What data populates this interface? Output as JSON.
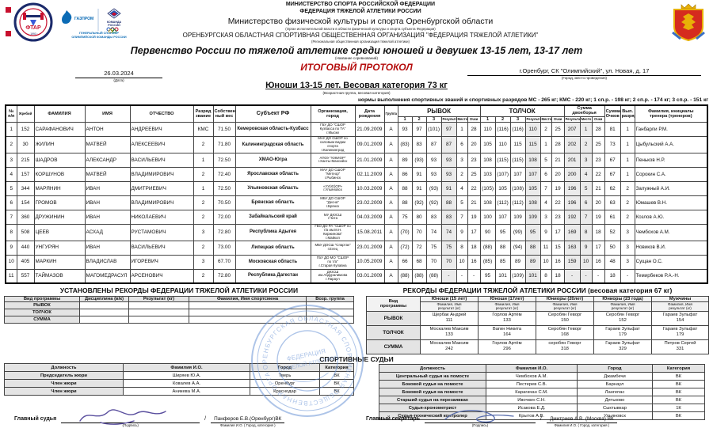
{
  "header": {
    "line1": "МИНИСТЕРСТВО СПОРТА  РОССИЙСКОЙ ФЕДЕРАЦИИ",
    "line2": "ФЕДЕРАЦИЯ ТЯЖЕЛОЙ АТЛЕТИКИ РОССИИ",
    "line3": "Министерство физической культуры и спорта Оренбургской области",
    "line4": "(Орган исполнительной власти в области физической культуры и спорта субъекта Федерации)",
    "line5": "ОРЕНБУРГСКАЯ ОБЛАСТНАЯ СПОРТИВНАЯ ОБЩЕСТВЕННАЯ ОРГАНИЗАЦИЯ \"ФЕДЕРАЦИЯ ТЯЖЕЛОЙ АТЛЕТИКИ\"",
    "line6": "(Региональная общественная организация тяжелой атлетики)",
    "sponsor1": "ГЕНЕРАЛЬНЫЙ СПОНСОР",
    "sponsor2": "ОЛИМПИЙСКОЙ КОМАНДЫ РОССИИ"
  },
  "title": {
    "competition": "Первенство России по тяжелой атлетике среди юношей и девушек 13-15 лет, 13-17 лет",
    "competition_label": "(Название соревнований)",
    "protocol": "ИТОГОВЫЙ ПРОТОКОЛ"
  },
  "meta": {
    "date": "26.03.2024",
    "date_label": "(Дата)",
    "place": "г.Оренбург, СК \"Олимпийский\", ул. Новая, д. 17",
    "place_label": "(Город, место проведения)"
  },
  "category": {
    "heading": "Юноши 13-15 лет. Весовая категория 73 кг",
    "label": "(Возрастная группа, весовая категория)",
    "norms": "нормы выполнения спортивных званий и спортивных разрядов  МС - 265 кг; КМС - 220 кг; 1 сп.р. - 198 кг; 2 сп.р. - 174 кг; 3 сп.р. - 151 кг"
  },
  "main_table": {
    "h": {
      "num": "№\nп/п",
      "lot": "Жребий",
      "surname": "ФАМИЛИЯ",
      "name": "ИМЯ",
      "patronymic": "ОТЧЕСТВО",
      "rank": "Разряд\nзвание",
      "weight": "Собствен\nный вес",
      "region": "Субъект РФ",
      "org": "Организация,\nгород",
      "born": "Дата\nрождения",
      "group": "Группа",
      "snatch": "РЫВОК",
      "jerk": "ТОЛЧОК",
      "total": "Сумма двоеборья",
      "sum": "Сумма\nОчков",
      "newrank": "Вып.\nразряд",
      "coach": "Фамилия, инициалы\nтренера (тренеров)",
      "a1": "1",
      "a2": "2",
      "a3": "3",
      "res": "Результат",
      "place": "Место",
      "pts": "Очки"
    },
    "rows": [
      {
        "n": "1",
        "lot": "152",
        "surname": "САРАФАНОВИЧ",
        "name": "АНТОН",
        "patronymic": "АНДРЕЕВИЧ",
        "rank": "КМС",
        "weight": "71.50",
        "region": "Кемеровская область-Кузбасс",
        "org": "ГБУ ДО \"СШОР\nКузбасса по ТА\"\nг.Мыски",
        "born": "21.09.2009",
        "group": "А",
        "snatch": [
          "93",
          "97",
          "(101)",
          "97",
          "1",
          "28"
        ],
        "jerk": [
          "110",
          "(116)",
          "(116)",
          "110",
          "2",
          "25"
        ],
        "total": [
          "207",
          "1",
          "28"
        ],
        "points": "81",
        "new_rank": "1",
        "coach": "Ганбарли Р.М."
      },
      {
        "n": "2",
        "lot": "30",
        "surname": "ЖИЛИН",
        "name": "МАТВЕЙ",
        "patronymic": "АЛЕКСЕЕВИЧ",
        "rank": "2",
        "weight": "71.80",
        "region": "Калининградская область",
        "org": "МАУ ДО СШОР по\nсиловым видам\nспорта\nг.Калининград",
        "born": "09.01.2009",
        "group": "А",
        "snatch": [
          "(83)",
          "83",
          "87",
          "87",
          "6",
          "20"
        ],
        "jerk": [
          "105",
          "110",
          "115",
          "115",
          "1",
          "28"
        ],
        "total": [
          "202",
          "2",
          "25"
        ],
        "points": "73",
        "new_rank": "1",
        "coach": "Цыбульский А.А."
      },
      {
        "n": "3",
        "lot": "215",
        "surname": "ШАДРОВ",
        "name": "АЛЕКСАНДР",
        "patronymic": "ВАСИЛЬЕВИЧ",
        "rank": "1",
        "weight": "72.50",
        "region": "ХМАО-Югра",
        "org": "АПОУ \"ЮКИОР\"\nг.Ханты-Мансийск",
        "born": "21.01.2009",
        "group": "А",
        "snatch": [
          "89",
          "(93)",
          "93",
          "93",
          "3",
          "23"
        ],
        "jerk": [
          "108",
          "(115)",
          "(115)",
          "108",
          "5",
          "21"
        ],
        "total": [
          "201",
          "3",
          "23"
        ],
        "points": "67",
        "new_rank": "1",
        "coach": "Пеньков Н.Р."
      },
      {
        "n": "4",
        "lot": "157",
        "surname": "КОРШУНОВ",
        "name": "МАТВЕЙ",
        "patronymic": "ВЛАДИМИРОВИЧ",
        "rank": "2",
        "weight": "72.40",
        "region": "Ярославская область",
        "org": "МАУ ДО СШОР\n\"Метеор\"\nг.Рыбинск",
        "born": "02.11.2009",
        "group": "А",
        "snatch": [
          "86",
          "91",
          "93",
          "93",
          "2",
          "25"
        ],
        "jerk": [
          "103",
          "(107)",
          "107",
          "107",
          "6",
          "20"
        ],
        "total": [
          "200",
          "4",
          "22"
        ],
        "points": "67",
        "new_rank": "1",
        "coach": "Сорокин С.А."
      },
      {
        "n": "5",
        "lot": "344",
        "surname": "МАРЯНИН",
        "name": "ИВАН",
        "patronymic": "ДМИТРИЕВИЧ",
        "rank": "1",
        "weight": "72.50",
        "region": "Ульяновская область",
        "org": "«УУ(Ю)ОР»\nг.Ульяновск",
        "born": "10.03.2009",
        "group": "А",
        "snatch": [
          "88",
          "91",
          "(93)",
          "91",
          "4",
          "22"
        ],
        "jerk": [
          "(105)",
          "105",
          "(108)",
          "105",
          "7",
          "19"
        ],
        "total": [
          "196",
          "5",
          "21"
        ],
        "points": "62",
        "new_rank": "2",
        "coach": "Залужный А.И."
      },
      {
        "n": "6",
        "lot": "154",
        "surname": "ГРОМОВ",
        "name": "ИВАН",
        "patronymic": "ВЛАДИМИРОВИЧ",
        "rank": "2",
        "weight": "70.50",
        "region": "Брянская область",
        "org": "МБУ ДО СШОР\n\"Десна\"\nг.Брянск",
        "born": "23.02.2009",
        "group": "А",
        "snatch": [
          "88",
          "(92)",
          "(92)",
          "88",
          "5",
          "21"
        ],
        "jerk": [
          "108",
          "(112)",
          "(112)",
          "108",
          "4",
          "22"
        ],
        "total": [
          "196",
          "6",
          "20"
        ],
        "points": "63",
        "new_rank": "2",
        "coach": "Юмашев В.Н."
      },
      {
        "n": "7",
        "lot": "360",
        "surname": "ДРУЖИНИН",
        "name": "ИВАН",
        "patronymic": "НИКОЛАЕВИЧ",
        "rank": "2",
        "weight": "72.00",
        "region": "Забайкальский край",
        "org": "МУ ДЮСШ\nг.Чита",
        "born": "04.03.2009",
        "group": "А",
        "snatch": [
          "75",
          "80",
          "83",
          "83",
          "7",
          "19"
        ],
        "jerk": [
          "100",
          "107",
          "109",
          "109",
          "3",
          "23"
        ],
        "total": [
          "192",
          "7",
          "19"
        ],
        "points": "61",
        "new_rank": "2",
        "coach": "Козлов А.Ю."
      },
      {
        "n": "8",
        "lot": "508",
        "surname": "ЦЕЕВ",
        "name": "АСХАД",
        "patronymic": "РУСТАМОВИЧ",
        "rank": "3",
        "weight": "72.80",
        "region": "Республика Адыгея",
        "org": "ГБО ДО РА \"СШОР по\nт/а им.М.Н.\nКиржинова\"\nг.Майкоп",
        "born": "15.08.2011",
        "group": "А",
        "snatch": [
          "(70)",
          "70",
          "74",
          "74",
          "9",
          "17"
        ],
        "jerk": [
          "90",
          "95",
          "(99)",
          "95",
          "9",
          "17"
        ],
        "total": [
          "169",
          "8",
          "18"
        ],
        "points": "52",
        "new_rank": "3",
        "coach": "Чембохов А.М."
      },
      {
        "n": "9",
        "lot": "440",
        "surname": "УНГУРЯН",
        "name": "ИВАН",
        "patronymic": "ВАСИЛЬЕВИЧ",
        "rank": "2",
        "weight": "73.00",
        "region": "Липецкая область",
        "org": "МБУ ДОСШ \"Спартак\"\nг.Елец",
        "born": "23.01.2009",
        "group": "А",
        "snatch": [
          "(72)",
          "72",
          "75",
          "75",
          "8",
          "18"
        ],
        "jerk": [
          "(88)",
          "88",
          "(94)",
          "88",
          "11",
          "15"
        ],
        "total": [
          "163",
          "9",
          "17"
        ],
        "points": "50",
        "new_rank": "3",
        "coach": "Новиков В.И."
      },
      {
        "n": "10",
        "lot": "405",
        "surname": "МАРКИН",
        "name": "ВЛАДИСЛАВ",
        "patronymic": "ИГОРЕВИЧ",
        "rank": "3",
        "weight": "67.70",
        "region": "Московская область",
        "org": "ГБУ ДО МО \"СШОР\nпо т/а\"\nг.Старая Купавна",
        "born": "10.05.2009",
        "group": "А",
        "snatch": [
          "66",
          "68",
          "70",
          "70",
          "10",
          "16"
        ],
        "jerk": [
          "(85)",
          "85",
          "89",
          "89",
          "10",
          "16"
        ],
        "total": [
          "159",
          "10",
          "16"
        ],
        "points": "48",
        "new_rank": "3",
        "coach": "Сущан О.С."
      },
      {
        "n": "11",
        "lot": "557",
        "surname": "ТАЙМАЗОВ",
        "name": "МАГОМЕДРАСУЛ",
        "patronymic": "АРСЕНОВИЧ",
        "rank": "2",
        "weight": "72.80",
        "region": "Республика Дагестан",
        "org": "ДЮСШ\nим.Абдуралимова\nг.Параул",
        "born": "03.01.2009",
        "group": "А",
        "snatch": [
          "(88)",
          "(88)",
          "(88)",
          "-",
          "-",
          "-"
        ],
        "jerk": [
          "95",
          "101",
          "(109)",
          "101",
          "8",
          "18"
        ],
        "total": [
          "-",
          "-",
          "-"
        ],
        "points": "18",
        "new_rank": "-",
        "coach": "Темирбеков Р.А.-Н."
      }
    ]
  },
  "records_set": {
    "title": "УСТАНОВЛЕНЫ РЕКОРДЫ ФЕДЕРАЦИИ ТЯЖЕЛОЙ АТЛЕТИКИ РОССИИ",
    "headers": [
      "Вид программы",
      "Дисциплина (в/к)",
      "Результат (кг)",
      "Фамилия, Имя спортсмена",
      "Возр. группа"
    ],
    "rows": [
      [
        "РЫВОК",
        "",
        "",
        "",
        ""
      ],
      [
        "ТОЛЧОК",
        "",
        "",
        "",
        ""
      ],
      [
        "СУММА",
        "",
        "",
        "",
        ""
      ]
    ]
  },
  "records_russia": {
    "title": "РЕКОРДЫ ФЕДЕРАЦИИ ТЯЖЕЛОЙ АТЛЕТИКИ РОССИИ (весовая категория 67 кг)",
    "col0": "Вид\nпрограммы",
    "groups": [
      "Юноши (15 лет)",
      "Юноши (17лет)",
      "Юниоры (20лет)",
      "Юниоры (23 года)",
      "Мужчины"
    ],
    "sub": "Фамилия, Имя\nрезультат (кг)",
    "rows": [
      {
        "label": "РЫВОК",
        "cells": [
          {
            "name": "Щербак Андрей",
            "value": "111"
          },
          {
            "name": "Горлов Артём",
            "value": "133"
          },
          {
            "name": "Серобян Геворг",
            "value": "150"
          },
          {
            "name": "Серобян Геворг",
            "value": "152"
          },
          {
            "name": "Гараев Зульфат",
            "value": "154"
          }
        ]
      },
      {
        "label": "ТОЛЧОК",
        "cells": [
          {
            "name": "Москалев Максим",
            "value": "133"
          },
          {
            "name": "Вагин Никита",
            "value": "164"
          },
          {
            "name": "Серобян Геворг",
            "value": "168"
          },
          {
            "name": "Гараев Зульфат",
            "value": "179"
          },
          {
            "name": "Гараев Зульфат",
            "value": "179"
          }
        ]
      },
      {
        "label": "СУММА",
        "cells": [
          {
            "name": "Москалев Максим",
            "value": "242"
          },
          {
            "name": "Горлов Артём",
            "value": "296"
          },
          {
            "name": "серобян Геворг",
            "value": "318"
          },
          {
            "name": "Гараев Зульфат",
            "value": "329"
          },
          {
            "name": "Петров Сергей",
            "value": "331"
          }
        ]
      }
    ]
  },
  "judges": {
    "heading": "СПОРТИВНЫЕ СУДЬИ",
    "left": {
      "headers": [
        "Должность",
        "Фамилия И.О.",
        "Город",
        "Категория"
      ],
      "rows": [
        [
          "Председатель жюри",
          "Ширяев Ю.А.",
          "Тверь",
          "ВК"
        ],
        [
          "Член жюри",
          "Ковалев А.А.",
          "Оренбург",
          "ВК"
        ],
        [
          "Член жюри",
          "Аникева М.А.",
          "Краснодар",
          "ВК"
        ]
      ]
    },
    "right": {
      "headers": [
        "Должность",
        "Фамилия И.О.",
        "Город",
        "Категория"
      ],
      "rows": [
        [
          "Центральный судья на помосте",
          "Чембохов А.М.",
          "Джамбечи",
          "ВК"
        ],
        [
          "Боковой судья на помосте",
          "Пестерев С.В.",
          "Барнаул",
          "ВК"
        ],
        [
          "Боковой судья на помосте",
          "Карагачан С.М.",
          "Лангепас",
          "ВК"
        ],
        [
          "Старший судья на перезаявках",
          "Ивочкин С.Н.",
          "Дятьково",
          "ВК"
        ],
        [
          "Судья-хронометрист",
          "Исакова Е.Д.",
          "Сыктывкар",
          "1К"
        ],
        [
          "Судья-технический контролер",
          "Крытов А.В.",
          "Ульяновск",
          "ВК"
        ]
      ]
    }
  },
  "signatures": {
    "sign_label": "(Подпись)",
    "name_label": "Фамилия И.О. ( Город, категория )",
    "slash": "/",
    "left": {
      "role": "Главный судья",
      "name": "Панферов Е.В.(Оренбург)ВК"
    },
    "right": {
      "role": "Главный секретарь",
      "name": "Дмитриев А.В. (Москва) ВК"
    }
  },
  "stamp": {
    "outer": "ОРЕНБУРГСКАЯ ОБЛАСТНАЯ СПОРТИВНАЯ ОБЩЕСТВЕННАЯ ОРГАНИЗАЦИЯ",
    "inner1": "ФЕДЕРАЦИЯ",
    "inner2": "ТЯЖЕЛОЙ АТЛЕТИКИ"
  },
  "colors": {
    "protocol_red": "#b50d0d",
    "stamp_blue": "#6b94d6",
    "sponsor_blue": "#0b6bb5"
  }
}
